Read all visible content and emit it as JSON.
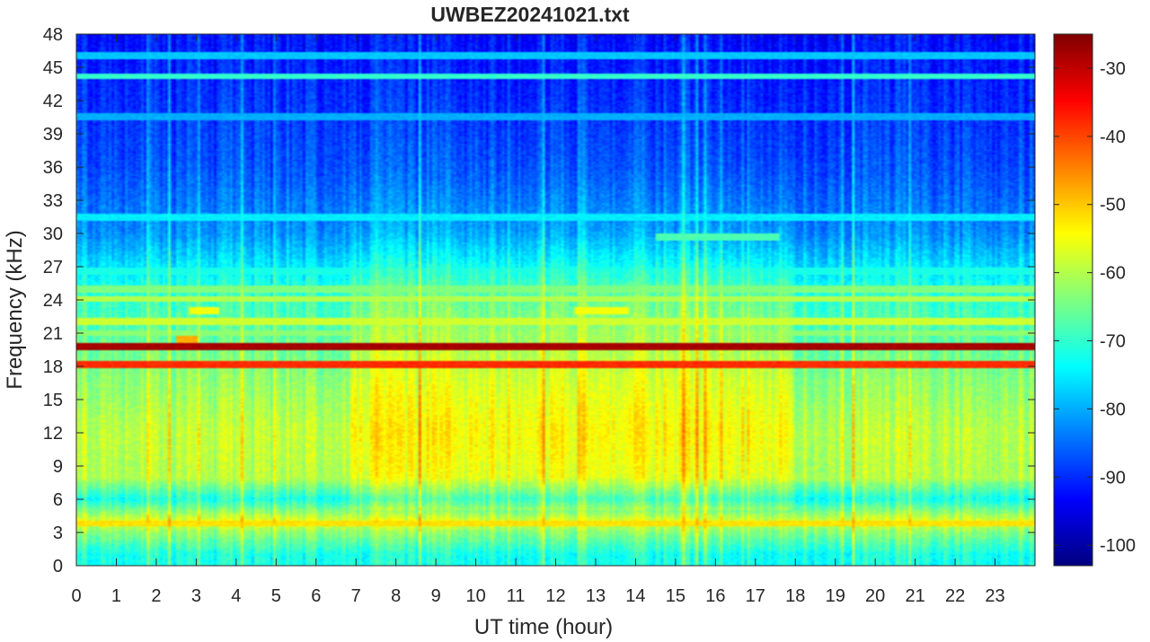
{
  "chart_data": {
    "type": "heatmap",
    "title": "UWBEZ20241021.txt",
    "xlabel": "UT time (hour)",
    "ylabel": "Frequency (kHz)",
    "xlim": [
      0,
      24
    ],
    "ylim": [
      0,
      48
    ],
    "x_ticks": [
      0,
      1,
      2,
      3,
      4,
      5,
      6,
      7,
      8,
      9,
      10,
      11,
      12,
      13,
      14,
      15,
      16,
      17,
      18,
      19,
      20,
      21,
      22,
      23
    ],
    "y_ticks": [
      0,
      3,
      6,
      9,
      12,
      15,
      18,
      21,
      24,
      27,
      30,
      33,
      36,
      39,
      42,
      45,
      48
    ],
    "colorbar": {
      "colormap": "jet",
      "range": [
        -103,
        -25
      ],
      "ticks": [
        -30,
        -40,
        -50,
        -60,
        -70,
        -80,
        -90,
        -100
      ]
    },
    "level_profile_by_frequency": [
      {
        "f_khz": 1,
        "level": -72
      },
      {
        "f_khz": 3,
        "level": -63
      },
      {
        "f_khz": 4,
        "level": -56
      },
      {
        "f_khz": 6,
        "level": -72
      },
      {
        "f_khz": 8,
        "level": -60
      },
      {
        "f_khz": 12,
        "level": -59
      },
      {
        "f_khz": 17,
        "level": -63
      },
      {
        "f_khz": 24.5,
        "level": -70
      },
      {
        "f_khz": 30,
        "level": -82
      },
      {
        "f_khz": 36,
        "level": -87
      },
      {
        "f_khz": 48,
        "level": -92
      }
    ],
    "daytime_enhancement": {
      "start_hour": 6.9,
      "end_hour": 17.9,
      "level_boost": 6
    },
    "transmitter_lines": [
      {
        "f_khz": 19.8,
        "level": -28,
        "start_hour": 0,
        "end_hour": 24
      },
      {
        "f_khz": 18.2,
        "level": -38,
        "start_hour": 0,
        "end_hour": 24
      },
      {
        "f_khz": 22.1,
        "level": -58,
        "start_hour": 0,
        "end_hour": 24
      },
      {
        "f_khz": 24.1,
        "level": -60,
        "start_hour": 0,
        "end_hour": 24
      },
      {
        "f_khz": 25.0,
        "level": -64,
        "start_hour": 0,
        "end_hour": 24
      },
      {
        "f_khz": 23.0,
        "level": -55,
        "start_hour": 2.8,
        "end_hour": 3.6
      },
      {
        "f_khz": 23.0,
        "level": -55,
        "start_hour": 12.5,
        "end_hour": 13.8
      },
      {
        "f_khz": 20.4,
        "level": -48,
        "start_hour": 2.5,
        "end_hour": 3.0
      },
      {
        "f_khz": 44.2,
        "level": -70,
        "start_hour": 0,
        "end_hour": 24
      },
      {
        "f_khz": 31.5,
        "level": -75,
        "start_hour": 0,
        "end_hour": 24
      },
      {
        "f_khz": 29.7,
        "level": -68,
        "start_hour": 14.5,
        "end_hour": 17.6
      },
      {
        "f_khz": 26.6,
        "level": -72,
        "start_hour": 0,
        "end_hour": 24
      },
      {
        "f_khz": 46.0,
        "level": -78,
        "start_hour": 0,
        "end_hour": 24
      },
      {
        "f_khz": 40.5,
        "level": -80,
        "start_hour": 0,
        "end_hour": 24
      },
      {
        "f_khz": 3.8,
        "level": -52,
        "start_hour": 0,
        "end_hour": 24
      },
      {
        "f_khz": 15.9,
        "level": -66,
        "start_hour": 0,
        "end_hour": 24
      },
      {
        "f_khz": 7.9,
        "level": -62,
        "start_hour": 0,
        "end_hour": 24
      },
      {
        "f_khz": 21.0,
        "level": -63,
        "start_hour": 0,
        "end_hour": 24
      }
    ],
    "grid": false,
    "legend": "colorbar right"
  }
}
